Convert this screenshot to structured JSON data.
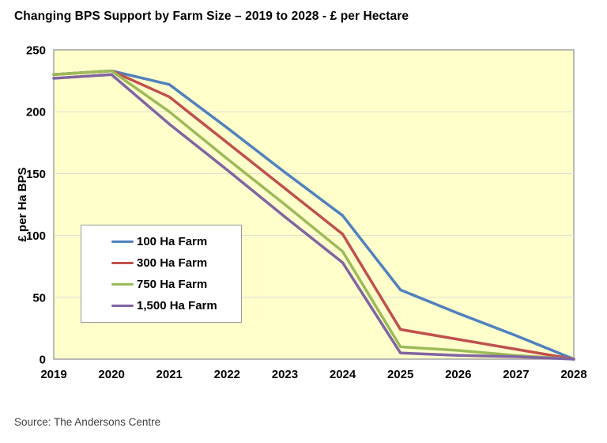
{
  "title": "Changing BPS Support by Farm Size – 2019 to 2028 - £ per Hectare",
  "source": "Source: The Andersons Centre",
  "chart_data": {
    "type": "line",
    "categories": [
      "2019",
      "2020",
      "2021",
      "2022",
      "2023",
      "2024",
      "2025",
      "2026",
      "2027",
      "2028"
    ],
    "series": [
      {
        "name": "100 Ha Farm",
        "color": "#4F81BD",
        "values": [
          230,
          233,
          222,
          187,
          151,
          116,
          56,
          37,
          19,
          0
        ]
      },
      {
        "name": "300 Ha Farm",
        "color": "#C0504D",
        "values": [
          230,
          233,
          212,
          175,
          138,
          101,
          24,
          16,
          8,
          0
        ]
      },
      {
        "name": "750 Ha Farm",
        "color": "#9BBB59",
        "values": [
          230,
          233,
          200,
          162,
          125,
          87,
          10,
          7,
          3,
          0
        ]
      },
      {
        "name": "1,500 Ha Farm",
        "color": "#8064A2",
        "values": [
          227,
          230,
          190,
          153,
          115,
          78,
          5,
          3,
          2,
          0
        ]
      }
    ],
    "title": "Changing BPS Support by Farm Size – 2019 to 2028 - £ per Hectare",
    "xlabel": "",
    "ylabel": "£ per Ha BPS",
    "ylim": [
      0,
      250
    ],
    "yticks": [
      0,
      50,
      100,
      150,
      200,
      250
    ],
    "grid": true,
    "legend_position": "inside-left",
    "plot_bg": "#FFFFCC",
    "grid_color": "#DBDBD2",
    "border_color": "#A3A3A3"
  }
}
